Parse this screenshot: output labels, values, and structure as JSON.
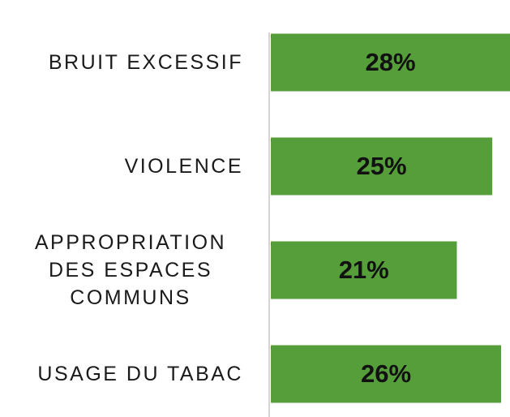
{
  "chart_data": {
    "type": "barh",
    "categories": [
      "BRUIT EXCESSIF",
      "VIOLENCE",
      "APPROPRIATION DES ESPACES COMMUNS",
      "USAGE DU TABAC"
    ],
    "values": [
      28,
      25,
      21,
      26
    ],
    "value_labels": [
      "28%",
      "25%",
      "21%",
      "26%"
    ],
    "color": "#559e3a",
    "xlim": [
      0,
      27
    ]
  }
}
